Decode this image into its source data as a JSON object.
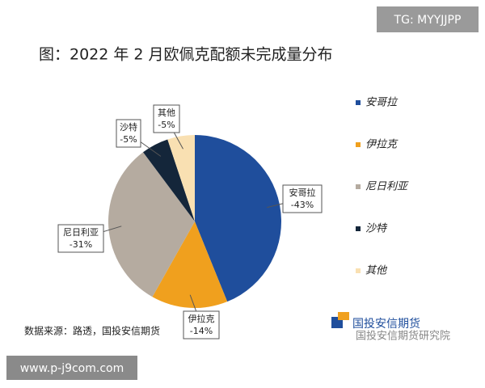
{
  "chart_data": {
    "type": "pie",
    "title": "图：2022 年 2 月欧佩克配额未完成量分布",
    "categories": [
      "安哥拉",
      "伊拉克",
      "尼日利亚",
      "沙特",
      "其他"
    ],
    "values": [
      -43,
      -14,
      -31,
      -5,
      -5
    ],
    "value_labels": [
      "-43%",
      "-14%",
      "-31%",
      "-5%",
      "-5%"
    ],
    "colors": [
      "#1f4e9c",
      "#f0a01e",
      "#b5aba0",
      "#14263a",
      "#f9e0b2"
    ],
    "legend": "right",
    "source": "数据来源：路透，国投安信期货"
  },
  "logo_text": "国投安信期货",
  "watermarks": [
    "TG: MYYJJPP",
    "www.p-j9com.com",
    "国投安信期货研究院"
  ]
}
